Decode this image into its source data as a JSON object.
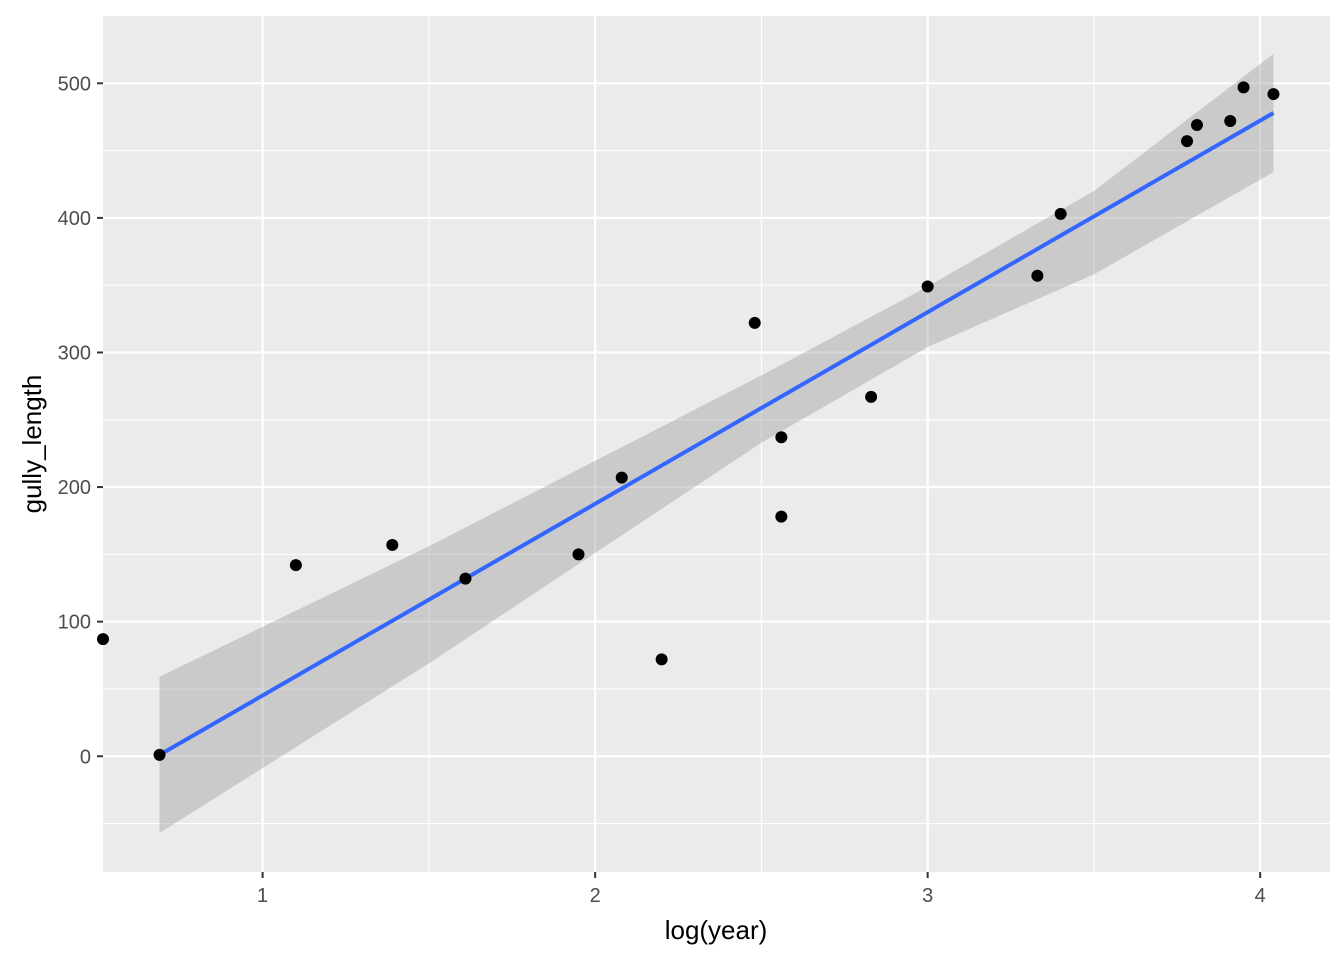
{
  "chart_data": {
    "type": "scatter",
    "xlabel": "log(year)",
    "ylabel": "gully_length",
    "xlim": [
      0.52,
      4.21
    ],
    "ylim": [
      -86,
      550
    ],
    "x_ticks": [
      1,
      2,
      3,
      4
    ],
    "x_minor_ticks": [
      1.5,
      2.5,
      3.5
    ],
    "y_ticks": [
      0,
      100,
      200,
      300,
      400,
      500
    ],
    "y_minor_ticks": [
      -50,
      50,
      150,
      250,
      350,
      450
    ],
    "grid": true,
    "points": [
      {
        "x": 0.52,
        "y": 87
      },
      {
        "x": 0.69,
        "y": 1
      },
      {
        "x": 1.1,
        "y": 142
      },
      {
        "x": 1.39,
        "y": 157
      },
      {
        "x": 1.61,
        "y": 132
      },
      {
        "x": 1.95,
        "y": 150
      },
      {
        "x": 2.08,
        "y": 207
      },
      {
        "x": 2.2,
        "y": 72
      },
      {
        "x": 2.48,
        "y": 322
      },
      {
        "x": 2.56,
        "y": 237
      },
      {
        "x": 2.56,
        "y": 178
      },
      {
        "x": 2.83,
        "y": 267
      },
      {
        "x": 3.0,
        "y": 349
      },
      {
        "x": 3.33,
        "y": 357
      },
      {
        "x": 3.4,
        "y": 403
      },
      {
        "x": 3.78,
        "y": 457
      },
      {
        "x": 3.81,
        "y": 469
      },
      {
        "x": 3.91,
        "y": 472
      },
      {
        "x": 3.95,
        "y": 497
      },
      {
        "x": 4.04,
        "y": 492
      }
    ],
    "fit_line": {
      "x": [
        0.69,
        4.04
      ],
      "y": [
        1,
        478
      ]
    },
    "confidence_band": {
      "x": [
        0.69,
        1.5,
        2.5,
        3.0,
        3.5,
        4.04
      ],
      "upper": [
        59,
        156,
        283,
        349,
        420,
        522
      ],
      "lower": [
        -57,
        69,
        233,
        304,
        358,
        434
      ]
    },
    "colors": {
      "panel_background": "#ebebeb",
      "grid_line": "#ffffff",
      "point": "#000000",
      "fit_line": "#3366ff",
      "band": "#999999"
    }
  }
}
